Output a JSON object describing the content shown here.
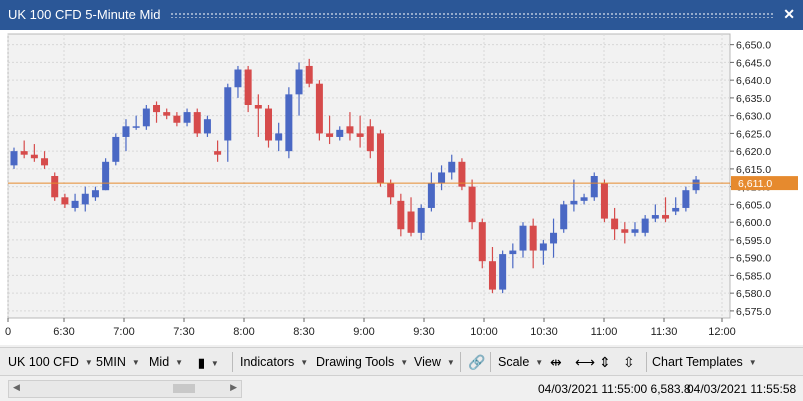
{
  "window": {
    "title": "UK 100 CFD 5-Minute Mid"
  },
  "colors": {
    "bullish": "#4a68c4",
    "bearish": "#d64b4b",
    "current_price_line": "#e68a2e",
    "grid": "#d8d8d8",
    "plot_bg": "#f2f2f2"
  },
  "toolbar": {
    "instrument": "UK 100 CFD",
    "interval": "5MIN",
    "price_type": "Mid",
    "chart_type_icon": "candlestick-icon",
    "indicators": "Indicators",
    "drawing_tools": "Drawing Tools",
    "view": "View",
    "link_icon": "link-icon",
    "scale": "Scale",
    "scale_icons": [
      "zoom-in-horizontal-icon",
      "zoom-out-horizontal-icon",
      "zoom-in-vertical-icon",
      "zoom-out-vertical-icon"
    ],
    "chart_templates": "Chart Templates"
  },
  "status": {
    "cursor_readout": "04/03/2021 11:55:00 6,583.8",
    "last_time": "04/03/2021 11:55:58"
  },
  "chart_data": {
    "type": "candlestick",
    "title": "UK 100 CFD 5-Minute Mid",
    "current_price": 6611.0,
    "current_price_label": "6,611.0",
    "ylim": [
      6672,
      6653
    ],
    "y_ticks": [
      "6,650.0",
      "6,645.0",
      "6,640.0",
      "6,635.0",
      "6,630.0",
      "6,625.0",
      "6,620.0",
      "6,615.0",
      "6,610.0",
      "6,605.0",
      "6,600.0",
      "6,595.0",
      "6,590.0",
      "6,585.0",
      "6,580.0",
      "6,575.0"
    ],
    "x_ticks": [
      "0",
      "6:30",
      "7:00",
      "7:30",
      "8:00",
      "8:30",
      "9:00",
      "9:30",
      "10:00",
      "10:30",
      "11:00",
      "11:30",
      "12:00"
    ],
    "grid": true,
    "candles": [
      [
        6616,
        6621,
        6615,
        6620
      ],
      [
        6620,
        6623,
        6618,
        6619
      ],
      [
        6619,
        6622,
        6617,
        6618
      ],
      [
        6618,
        6620,
        6615,
        6616
      ],
      [
        6613,
        6614,
        6606,
        6607
      ],
      [
        6607,
        6608,
        6604,
        6605
      ],
      [
        6604,
        6608,
        6603,
        6606
      ],
      [
        6605,
        6610,
        6603,
        6608
      ],
      [
        6607,
        6610,
        6606,
        6609
      ],
      [
        6609,
        6618,
        6609,
        6617
      ],
      [
        6617,
        6625,
        6616,
        6624
      ],
      [
        6624,
        6629,
        6620,
        6627
      ],
      [
        6627,
        6630,
        6626,
        6627
      ],
      [
        6627,
        6633,
        6626,
        6632
      ],
      [
        6633,
        6634,
        6628,
        6631
      ],
      [
        6631,
        6632,
        6629,
        6630
      ],
      [
        6630,
        6631,
        6627,
        6628
      ],
      [
        6628,
        6632,
        6627,
        6631
      ],
      [
        6631,
        6632,
        6624,
        6625
      ],
      [
        6625,
        6630,
        6624,
        6629
      ],
      [
        6620,
        6623,
        6617,
        6619
      ],
      [
        6623,
        6639,
        6617,
        6638
      ],
      [
        6638,
        6644,
        6635,
        6643
      ],
      [
        6643,
        6644,
        6631,
        6633
      ],
      [
        6633,
        6636,
        6624,
        6632
      ],
      [
        6632,
        6633,
        6621,
        6623
      ],
      [
        6623,
        6628,
        6620,
        6625
      ],
      [
        6620,
        6638,
        6618,
        6636
      ],
      [
        6636,
        6645,
        6630,
        6643
      ],
      [
        6644,
        6646,
        6638,
        6639
      ],
      [
        6639,
        6640,
        6623,
        6625
      ],
      [
        6625,
        6630,
        6622,
        6624
      ],
      [
        6624,
        6627,
        6623,
        6626
      ],
      [
        6627,
        6631,
        6623,
        6625
      ],
      [
        6625,
        6630,
        6621,
        6624
      ],
      [
        6627,
        6629,
        6618,
        6620
      ],
      [
        6625,
        6626,
        6610,
        6611
      ],
      [
        6611,
        6612,
        6605,
        6607
      ],
      [
        6606,
        6608,
        6596,
        6598
      ],
      [
        6603,
        6607,
        6596,
        6597
      ],
      [
        6597,
        6605,
        6595,
        6604
      ],
      [
        6604,
        6614,
        6603,
        6611
      ],
      [
        6611,
        6616,
        6609,
        6614
      ],
      [
        6614,
        6619,
        6612,
        6617
      ],
      [
        6617,
        6618,
        6609,
        6610
      ],
      [
        6610,
        6612,
        6598,
        6600
      ],
      [
        6600,
        6601,
        6587,
        6589
      ],
      [
        6589,
        6593,
        6580,
        6581
      ],
      [
        6581,
        6592,
        6580,
        6591
      ],
      [
        6591,
        6594,
        6587,
        6592
      ],
      [
        6592,
        6600,
        6590,
        6599
      ],
      [
        6599,
        6601,
        6587,
        6592
      ],
      [
        6592,
        6595,
        6588,
        6594
      ],
      [
        6594,
        6601,
        6590,
        6597
      ],
      [
        6598,
        6606,
        6597,
        6605
      ],
      [
        6605,
        6612,
        6603,
        6606
      ],
      [
        6606,
        6608,
        6605,
        6607
      ],
      [
        6607,
        6614,
        6606,
        6613
      ],
      [
        6611,
        6612,
        6600,
        6601
      ],
      [
        6601,
        6604,
        6595,
        6598
      ],
      [
        6598,
        6600,
        6594,
        6597
      ],
      [
        6597,
        6600,
        6596,
        6598
      ],
      [
        6597,
        6602,
        6596,
        6601
      ],
      [
        6601,
        6605,
        6600,
        6602
      ],
      [
        6602,
        6607,
        6600,
        6601
      ],
      [
        6603,
        6607,
        6602,
        6604
      ],
      [
        6604,
        6610,
        6603,
        6609
      ],
      [
        6609,
        6613,
        6608,
        6612
      ]
    ]
  }
}
